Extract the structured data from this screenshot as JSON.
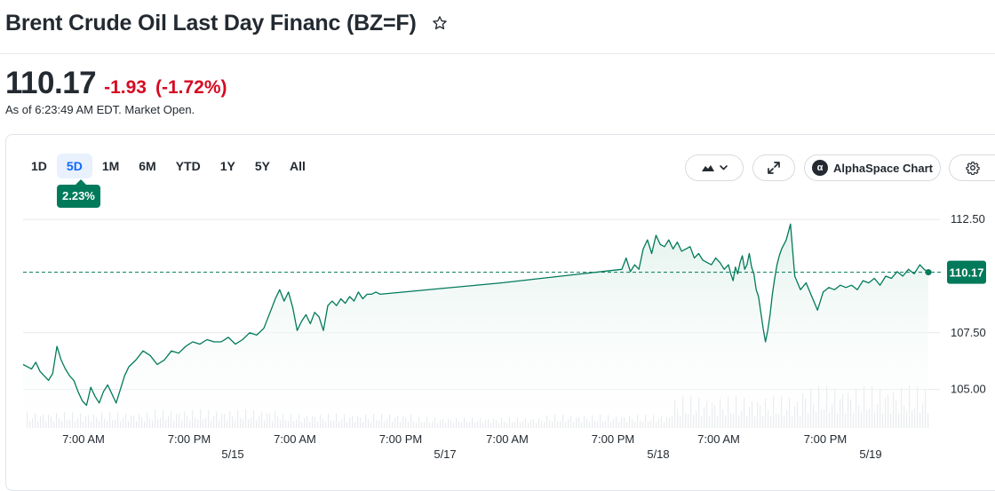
{
  "header": {
    "title": "Brent Crude Oil Last Day Financ (BZ=F)",
    "star_icon": "star-outline-icon"
  },
  "quote": {
    "price": "110.17",
    "change": "-1.93",
    "change_pct": "(-1.72%)",
    "as_of": "As of 6:23:49 AM EDT. Market Open.",
    "down_color": "#d60a22"
  },
  "toolbar": {
    "ranges": [
      "1D",
      "5D",
      "1M",
      "6M",
      "YTD",
      "1Y",
      "5Y",
      "All"
    ],
    "active_range": "5D",
    "range_return": "2.23%",
    "chart_type_icon": "mountain-chart-icon",
    "expand_icon": "expand-icon",
    "alpha_label": "AlphaSpace Chart",
    "alpha_logo_letter": "α",
    "settings_icon": "gear-icon"
  },
  "chart_data": {
    "type": "area",
    "title": "",
    "xlabel": "",
    "ylabel": "",
    "line_color": "#007a5a",
    "fill_color": "#e3f2ec",
    "reference_line": 110.17,
    "current_value_label": "110.17",
    "ylim": [
      103.3,
      113.8
    ],
    "y_ticks": [
      "112.50",
      "107.50",
      "105.00"
    ],
    "x_ticks": [
      "7:00 AM",
      "7:00 PM",
      "7:00 AM",
      "7:00 PM",
      "7:00 AM",
      "7:00 PM",
      "7:00 AM",
      "7:00 PM"
    ],
    "date_labels": [
      "5/15",
      "5/17",
      "5/18",
      "5/19"
    ],
    "grid": "horizontal",
    "sessions": [
      {
        "points": [
          [
            0,
            106.1
          ],
          [
            0.04,
            106.0
          ],
          [
            0.08,
            105.9
          ],
          [
            0.12,
            106.2
          ],
          [
            0.16,
            105.8
          ],
          [
            0.2,
            105.6
          ],
          [
            0.24,
            105.4
          ],
          [
            0.28,
            105.7
          ],
          [
            0.32,
            106.9
          ],
          [
            0.36,
            106.3
          ],
          [
            0.4,
            105.9
          ],
          [
            0.44,
            105.6
          ],
          [
            0.48,
            105.4
          ],
          [
            0.52,
            104.9
          ],
          [
            0.56,
            104.5
          ],
          [
            0.6,
            104.3
          ],
          [
            0.64,
            105.1
          ],
          [
            0.68,
            104.7
          ],
          [
            0.72,
            104.4
          ],
          [
            0.76,
            104.9
          ],
          [
            0.8,
            105.2
          ],
          [
            0.84,
            104.8
          ],
          [
            0.88,
            104.4
          ],
          [
            0.92,
            105.0
          ],
          [
            0.96,
            105.6
          ],
          [
            1.0,
            106.0
          ]
        ]
      },
      {
        "points": [
          [
            0,
            106.0
          ],
          [
            0.05,
            106.3
          ],
          [
            0.1,
            106.7
          ],
          [
            0.15,
            106.5
          ],
          [
            0.2,
            106.1
          ],
          [
            0.25,
            106.3
          ],
          [
            0.3,
            106.7
          ],
          [
            0.35,
            106.6
          ],
          [
            0.4,
            106.9
          ],
          [
            0.45,
            107.1
          ],
          [
            0.5,
            107.0
          ],
          [
            0.55,
            107.2
          ],
          [
            0.6,
            107.1
          ],
          [
            0.65,
            107.1
          ],
          [
            0.7,
            107.3
          ],
          [
            0.75,
            107.0
          ],
          [
            0.8,
            107.2
          ],
          [
            0.85,
            107.5
          ],
          [
            0.9,
            107.4
          ],
          [
            0.95,
            107.7
          ],
          [
            1.0,
            108.5
          ]
        ]
      },
      {
        "points": [
          [
            0,
            108.5
          ],
          [
            0.04,
            109.0
          ],
          [
            0.08,
            109.4
          ],
          [
            0.12,
            108.9
          ],
          [
            0.16,
            109.3
          ],
          [
            0.2,
            108.6
          ],
          [
            0.24,
            107.6
          ],
          [
            0.28,
            108.0
          ],
          [
            0.32,
            108.3
          ],
          [
            0.36,
            107.9
          ],
          [
            0.4,
            108.4
          ],
          [
            0.44,
            108.2
          ],
          [
            0.48,
            107.6
          ],
          [
            0.52,
            108.7
          ],
          [
            0.56,
            108.9
          ],
          [
            0.6,
            108.7
          ],
          [
            0.64,
            109.0
          ],
          [
            0.68,
            108.8
          ],
          [
            0.72,
            109.1
          ],
          [
            0.76,
            108.9
          ],
          [
            0.8,
            109.3
          ],
          [
            0.84,
            109.0
          ],
          [
            0.88,
            109.2
          ],
          [
            0.92,
            109.2
          ],
          [
            0.96,
            109.3
          ],
          [
            1.0,
            109.2
          ]
        ]
      },
      {
        "points": [
          [
            0,
            109.2
          ],
          [
            0.5,
            109.7
          ],
          [
            1.0,
            110.3
          ]
        ]
      },
      {
        "points": [
          [
            0,
            110.3
          ],
          [
            0.04,
            110.8
          ],
          [
            0.08,
            110.2
          ],
          [
            0.12,
            110.5
          ],
          [
            0.16,
            110.3
          ],
          [
            0.2,
            111.2
          ],
          [
            0.24,
            111.6
          ],
          [
            0.28,
            111.0
          ],
          [
            0.32,
            111.8
          ],
          [
            0.36,
            111.4
          ],
          [
            0.4,
            111.3
          ],
          [
            0.44,
            111.6
          ],
          [
            0.48,
            111.2
          ],
          [
            0.52,
            111.5
          ],
          [
            0.56,
            111.1
          ],
          [
            0.6,
            111.2
          ],
          [
            0.64,
            111.3
          ],
          [
            0.68,
            110.8
          ],
          [
            0.72,
            111.0
          ],
          [
            0.76,
            110.7
          ],
          [
            0.8,
            110.6
          ],
          [
            0.84,
            110.5
          ],
          [
            0.88,
            110.8
          ],
          [
            0.92,
            110.6
          ],
          [
            0.96,
            110.3
          ],
          [
            1.0,
            110.5
          ]
        ]
      },
      {
        "points": [
          [
            0,
            110.5
          ],
          [
            0.04,
            110.1
          ],
          [
            0.08,
            109.8
          ],
          [
            0.12,
            110.4
          ],
          [
            0.16,
            110.1
          ],
          [
            0.2,
            110.6
          ],
          [
            0.24,
            110.9
          ],
          [
            0.28,
            110.3
          ],
          [
            0.32,
            110.5
          ],
          [
            0.36,
            111.0
          ],
          [
            0.4,
            110.4
          ],
          [
            0.44,
            110.1
          ],
          [
            0.48,
            109.4
          ],
          [
            0.52,
            109.1
          ],
          [
            0.56,
            108.4
          ],
          [
            0.6,
            107.7
          ],
          [
            0.64,
            107.1
          ],
          [
            0.68,
            107.6
          ],
          [
            0.72,
            108.3
          ],
          [
            0.76,
            109.2
          ],
          [
            0.8,
            109.9
          ],
          [
            0.84,
            110.5
          ],
          [
            0.88,
            110.9
          ],
          [
            0.92,
            111.2
          ],
          [
            0.96,
            111.4
          ],
          [
            1.0,
            111.6
          ]
        ]
      },
      {
        "points": [
          [
            0,
            111.6
          ],
          [
            0.03,
            112.3
          ],
          [
            0.06,
            110.0
          ],
          [
            0.1,
            109.4
          ],
          [
            0.14,
            109.7
          ],
          [
            0.18,
            109.1
          ],
          [
            0.22,
            108.5
          ],
          [
            0.26,
            109.3
          ],
          [
            0.3,
            109.5
          ],
          [
            0.34,
            109.4
          ],
          [
            0.38,
            109.6
          ],
          [
            0.42,
            109.5
          ],
          [
            0.46,
            109.6
          ],
          [
            0.5,
            109.4
          ],
          [
            0.54,
            109.8
          ],
          [
            0.58,
            109.7
          ],
          [
            0.62,
            109.9
          ],
          [
            0.66,
            109.6
          ],
          [
            0.7,
            110.0
          ],
          [
            0.74,
            109.9
          ],
          [
            0.78,
            110.2
          ],
          [
            0.82,
            110.0
          ],
          [
            0.86,
            110.3
          ],
          [
            0.9,
            110.1
          ],
          [
            0.94,
            110.5
          ],
          [
            0.97,
            110.3
          ],
          [
            1.0,
            110.17
          ]
        ]
      }
    ],
    "volume_peaks": [
      0.25,
      0.3,
      0.22,
      0.15,
      0.2,
      0.55,
      0.75,
      0.65
    ]
  }
}
